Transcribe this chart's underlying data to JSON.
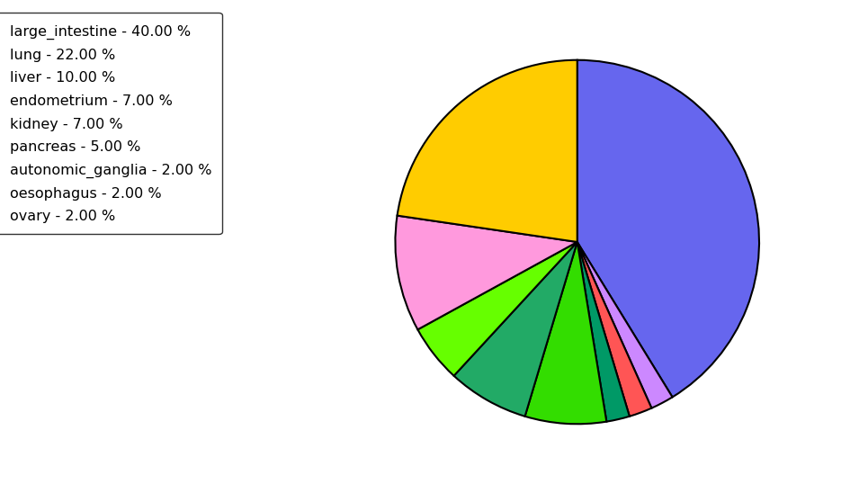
{
  "labels": [
    "large_intestine",
    "lung",
    "liver",
    "endometrium",
    "kidney",
    "pancreas",
    "autonomic_ganglia",
    "oesophagus",
    "ovary"
  ],
  "values": [
    40.0,
    22.0,
    10.0,
    7.0,
    7.0,
    5.0,
    2.0,
    2.0,
    2.0
  ],
  "colors": [
    "#6666ee",
    "#ffcc00",
    "#ff99dd",
    "#33dd00",
    "#009955",
    "#66ff00",
    "#009955",
    "#ff5555",
    "#cc88ff"
  ],
  "pie_colors": [
    "#6666ee",
    "#ffcc00",
    "#ff99dd",
    "#33dd00",
    "#22aa66",
    "#66ff00",
    "#009966",
    "#ff5555",
    "#cc88ff"
  ],
  "legend_labels": [
    "large_intestine - 40.00 %",
    "lung - 22.00 %",
    "liver - 10.00 %",
    "endometrium - 7.00 %",
    "kidney - 7.00 %",
    "pancreas - 5.00 %",
    "autonomic_ganglia - 2.00 %",
    "oesophagus - 2.00 %",
    "ovary - 2.00 %"
  ],
  "startangle": 90,
  "figsize": [
    9.65,
    5.38
  ],
  "dpi": 100
}
